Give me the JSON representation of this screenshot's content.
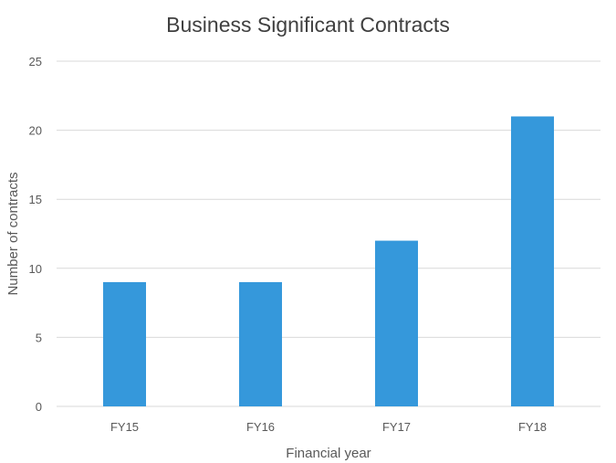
{
  "chart_data": {
    "type": "bar",
    "title": "Business Significant Contracts",
    "xlabel": "Financial year",
    "ylabel": "Number of contracts",
    "categories": [
      "FY15",
      "FY16",
      "FY17",
      "FY18"
    ],
    "values": [
      9,
      9,
      12,
      21
    ],
    "ylim": [
      0,
      25
    ],
    "yticks": [
      0,
      5,
      10,
      15,
      20,
      25
    ],
    "grid": true,
    "legend": "none",
    "colors": {
      "bar": "#3598db",
      "grid": "#d9d9d9",
      "text": "#595959",
      "title": "#404040"
    }
  }
}
